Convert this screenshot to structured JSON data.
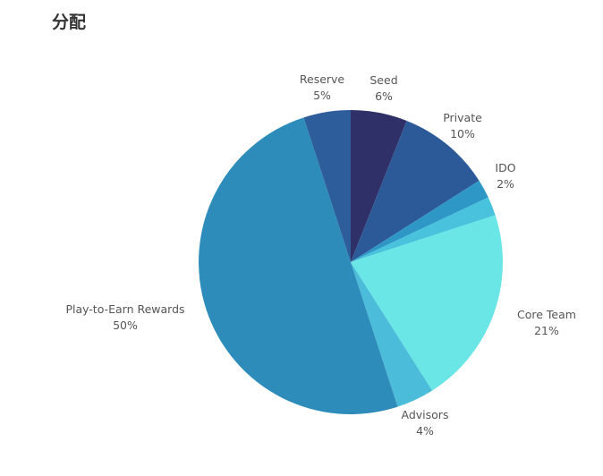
{
  "page": {
    "heading": "分配"
  },
  "chart_data": {
    "type": "pie",
    "title": "分配",
    "slices": [
      {
        "label": "Seed",
        "value_label": "6%",
        "value": 6,
        "color": "#2e3067"
      },
      {
        "label": "Private",
        "value_label": "10%",
        "value": 10,
        "color": "#2c5a98"
      },
      {
        "label": "IDO",
        "value_label": "2%",
        "value": 2,
        "color": "#2e97c6"
      },
      {
        "label": "",
        "value_label": "",
        "value": 2,
        "color": "#49c3dd"
      },
      {
        "label": "Core Team",
        "value_label": "21%",
        "value": 21,
        "color": "#6be6e6"
      },
      {
        "label": "Advisors",
        "value_label": "4%",
        "value": 4,
        "color": "#4bbcd9"
      },
      {
        "label": "Play-to-Earn Rewards",
        "value_label": "50%",
        "value": 50,
        "color": "#2d8cba"
      },
      {
        "label": "Reserve",
        "value_label": "5%",
        "value": 5,
        "color": "#2d5d9a"
      }
    ],
    "start": "12 o'clock, clockwise",
    "legend": "none (labels outside slices)"
  }
}
